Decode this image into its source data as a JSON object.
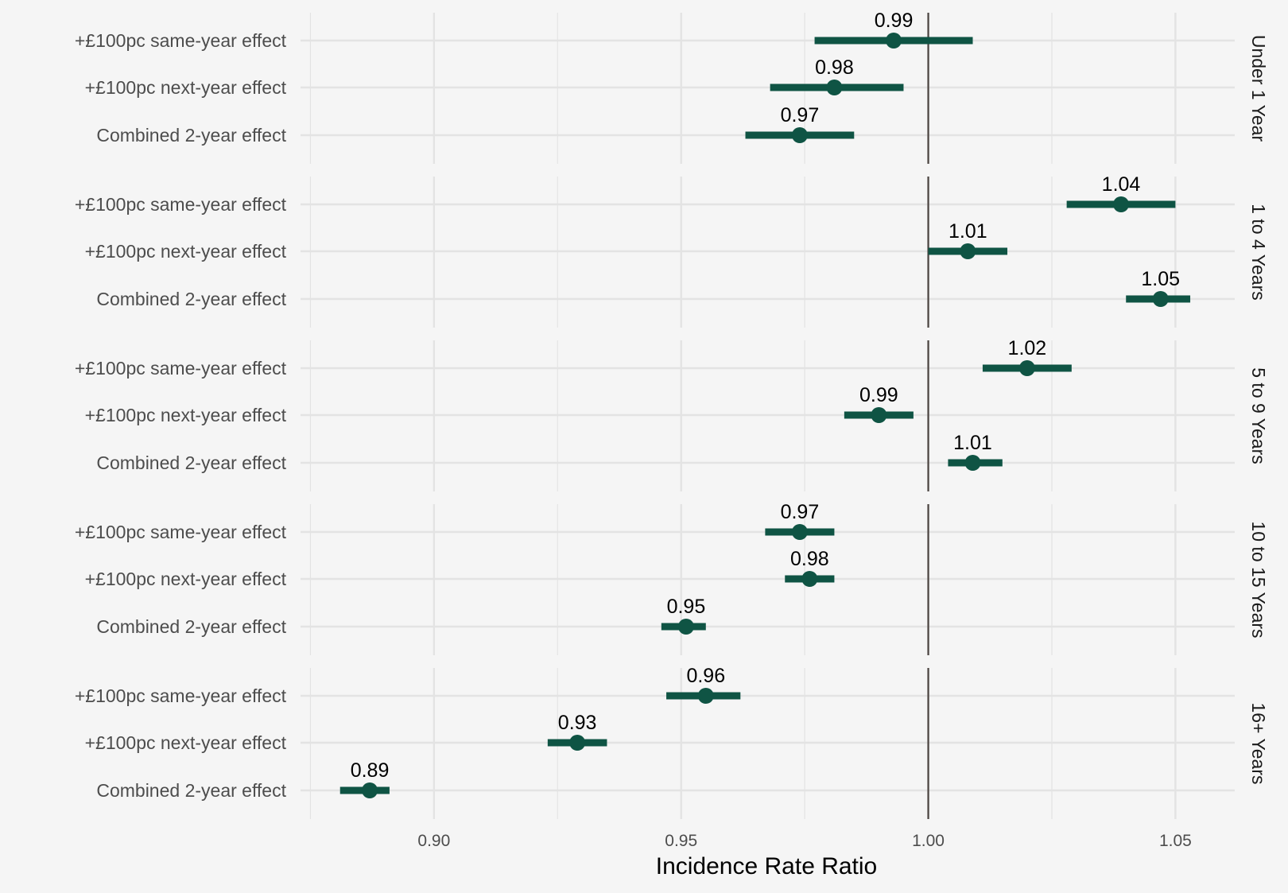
{
  "chart_data": {
    "type": "forest",
    "xlabel": "Incidence Rate Ratio",
    "xlim": [
      0.873,
      1.062
    ],
    "xticks": [
      "0.90",
      "0.95",
      "1.00",
      "1.05"
    ],
    "reference_line": 1.0,
    "grid": true,
    "colors": {
      "point": "#0f5444",
      "reference": "#4a4340",
      "grid": "#e3e3e3",
      "background": "#f5f5f5"
    },
    "rows": [
      "+£100pc same-year effect",
      "+£100pc next-year effect",
      "Combined 2-year effect"
    ],
    "panels": [
      {
        "name": "Under 1 Year",
        "points": [
          {
            "label": "0.99",
            "est": 0.993,
            "lo": 0.977,
            "hi": 1.009
          },
          {
            "label": "0.98",
            "est": 0.981,
            "lo": 0.968,
            "hi": 0.995
          },
          {
            "label": "0.97",
            "est": 0.974,
            "lo": 0.963,
            "hi": 0.985
          }
        ]
      },
      {
        "name": "1 to 4 Years",
        "points": [
          {
            "label": "1.04",
            "est": 1.039,
            "lo": 1.028,
            "hi": 1.05
          },
          {
            "label": "1.01",
            "est": 1.008,
            "lo": 1.0,
            "hi": 1.016
          },
          {
            "label": "1.05",
            "est": 1.047,
            "lo": 1.04,
            "hi": 1.053
          }
        ]
      },
      {
        "name": "5 to 9 Years",
        "points": [
          {
            "label": "1.02",
            "est": 1.02,
            "lo": 1.011,
            "hi": 1.029
          },
          {
            "label": "0.99",
            "est": 0.99,
            "lo": 0.983,
            "hi": 0.997
          },
          {
            "label": "1.01",
            "est": 1.009,
            "lo": 1.004,
            "hi": 1.015
          }
        ]
      },
      {
        "name": "10 to 15 Years",
        "points": [
          {
            "label": "0.97",
            "est": 0.974,
            "lo": 0.967,
            "hi": 0.981
          },
          {
            "label": "0.98",
            "est": 0.976,
            "lo": 0.971,
            "hi": 0.981
          },
          {
            "label": "0.95",
            "est": 0.951,
            "lo": 0.946,
            "hi": 0.955
          }
        ]
      },
      {
        "name": "16+ Years",
        "points": [
          {
            "label": "0.96",
            "est": 0.955,
            "lo": 0.947,
            "hi": 0.962
          },
          {
            "label": "0.93",
            "est": 0.929,
            "lo": 0.923,
            "hi": 0.935
          },
          {
            "label": "0.89",
            "est": 0.887,
            "lo": 0.881,
            "hi": 0.891
          }
        ]
      }
    ]
  }
}
